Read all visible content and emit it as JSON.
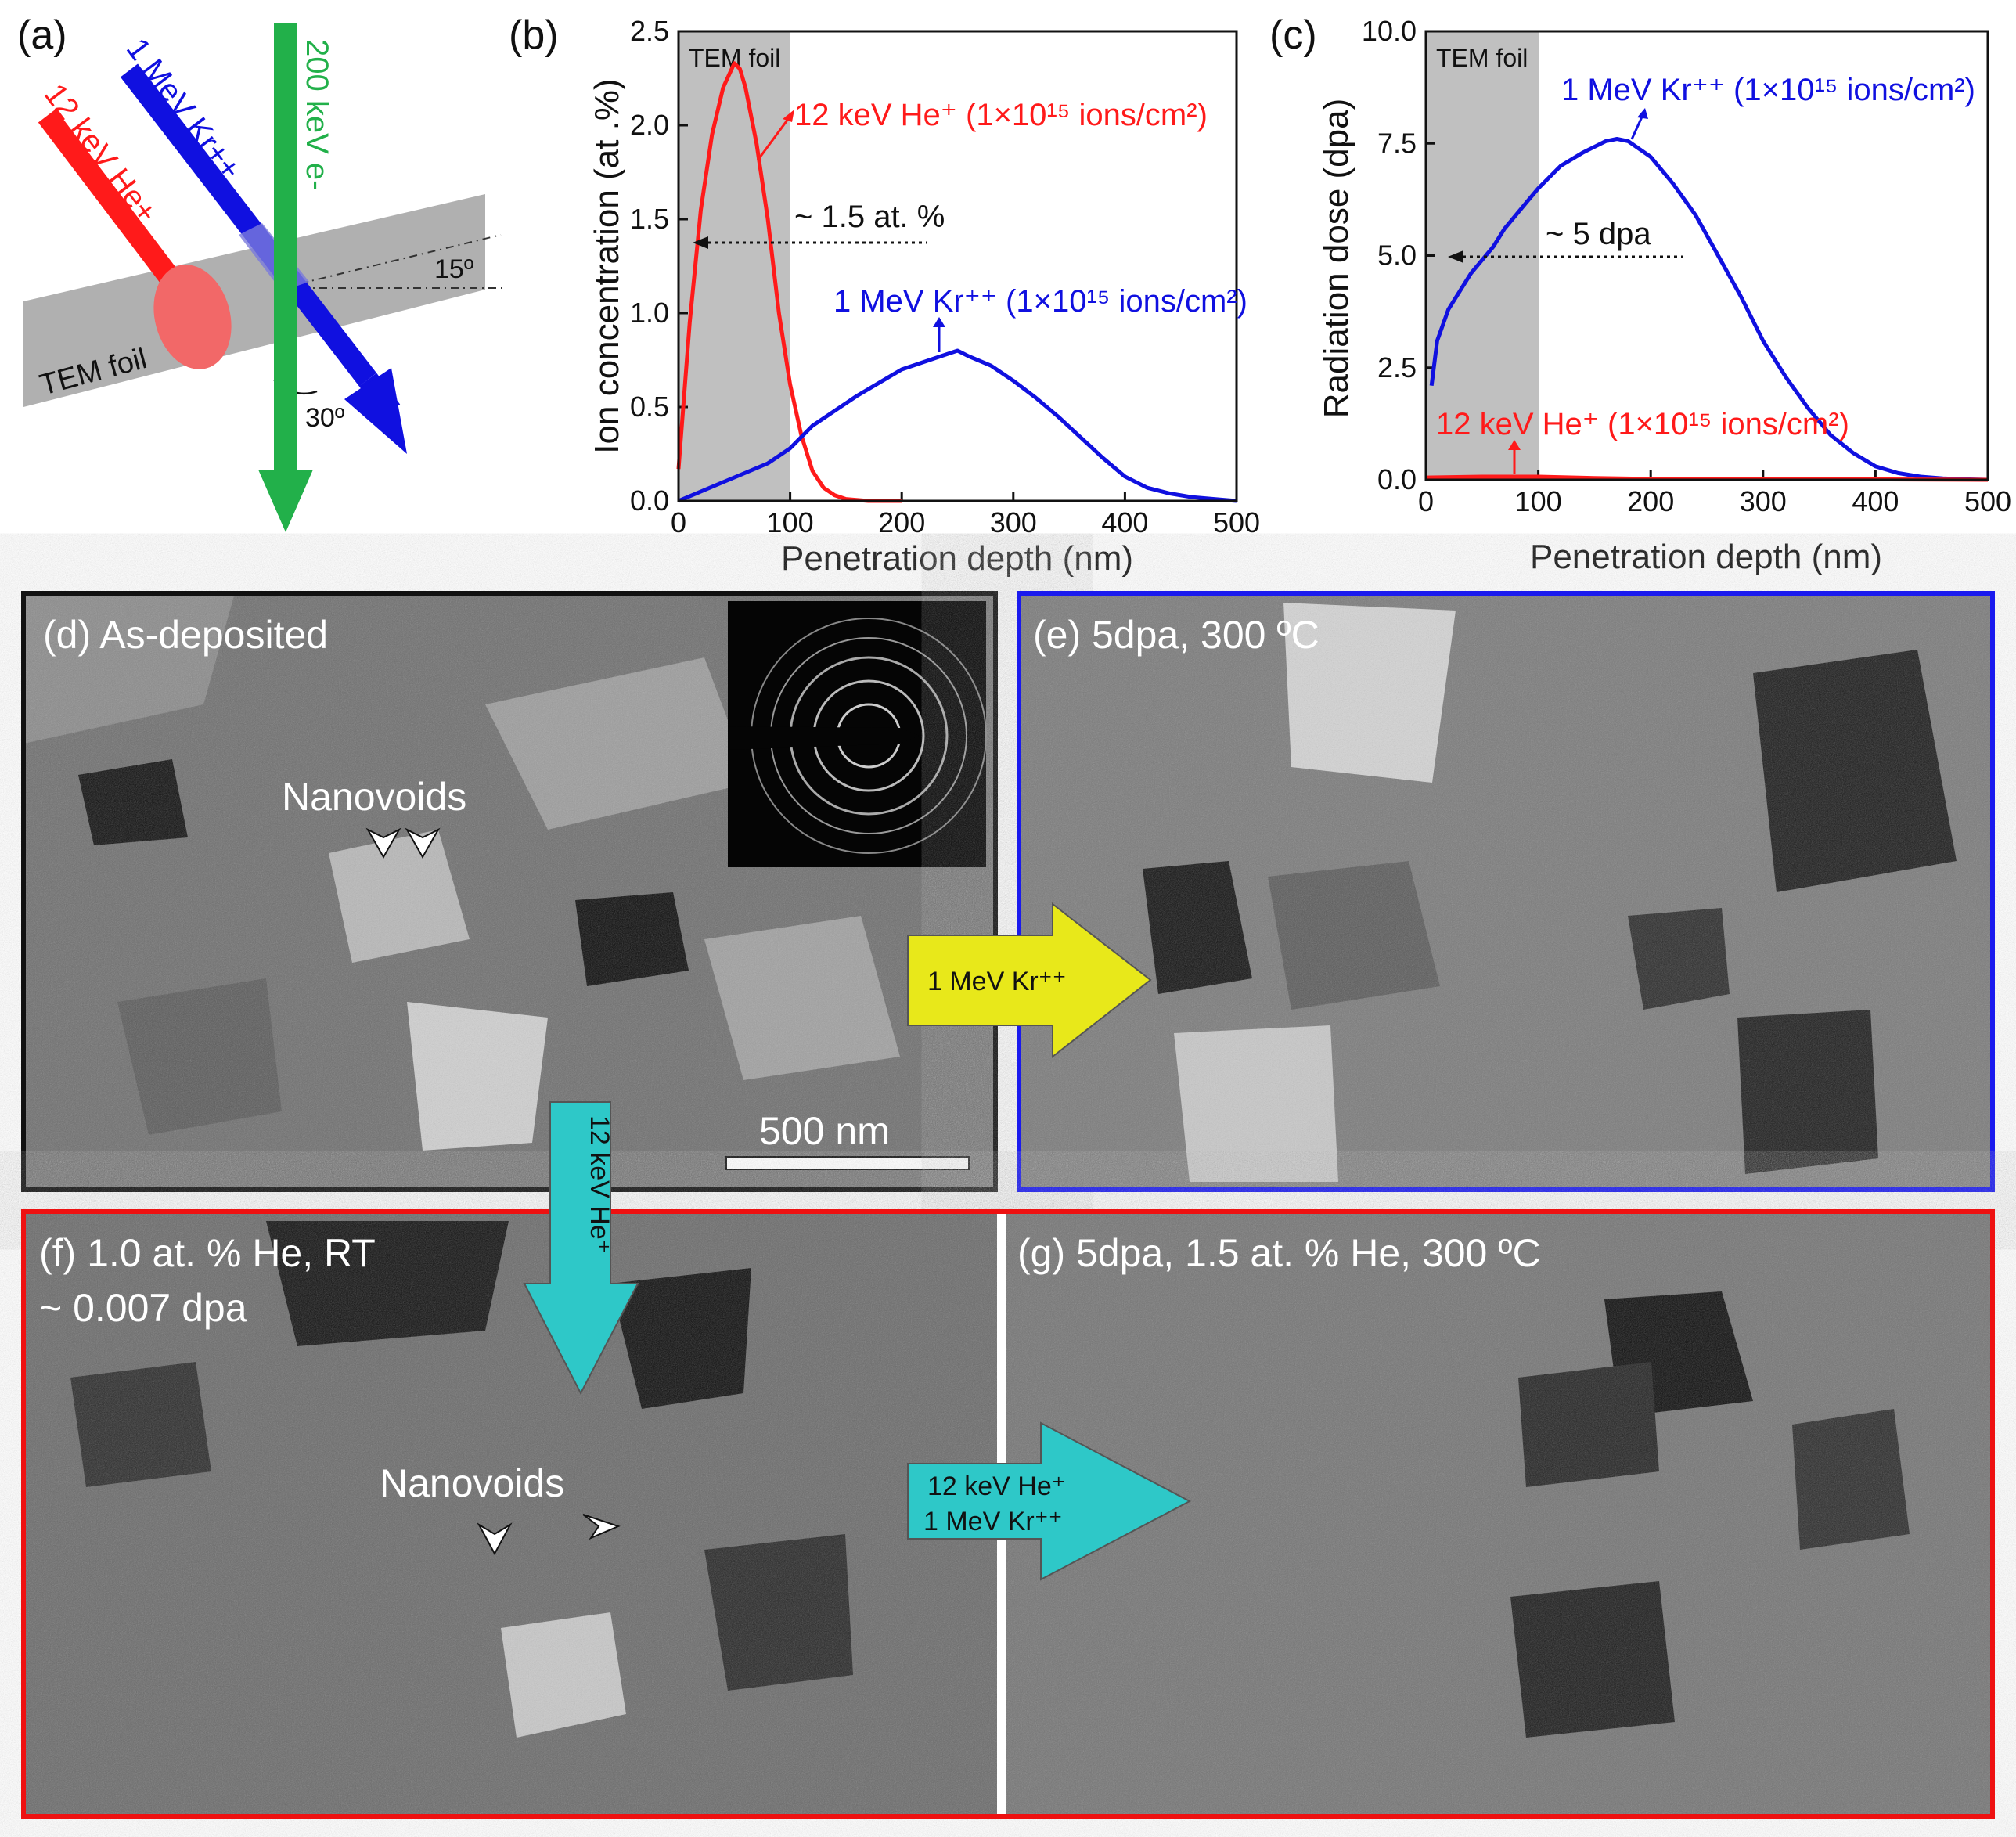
{
  "panel_a": {
    "letter": "(a)",
    "beam_he": "12 keV He+",
    "beam_kr": "1 MeV Kr++",
    "beam_e": "200 keV e-",
    "foil_label": "TEM foil",
    "angle_tilt": "15º",
    "angle_kr": "30º",
    "colors": {
      "he": "#ff1a1a",
      "kr": "#1010e0",
      "e": "#22b04a",
      "foil": "#aaaaaa"
    }
  },
  "panel_b": {
    "letter": "(b)",
    "foil_label": "TEM foil",
    "he_label": "12 keV He⁺ (1×10¹⁵ ions/cm²)",
    "kr_label": "1 MeV Kr⁺⁺ (1×10¹⁵ ions/cm²)",
    "marker_label": "~ 1.5 at. %"
  },
  "panel_c": {
    "letter": "(c)",
    "foil_label": "TEM foil",
    "kr_label": "1 MeV Kr⁺⁺ (1×10¹⁵ ions/cm²)",
    "he_label": "12 keV He⁺ (1×10¹⁵ ions/cm²)",
    "marker_label": "~ 5 dpa"
  },
  "chart_data": [
    {
      "type": "line",
      "xlabel": "Penetration depth (nm)",
      "ylabel": "Ion concentration (at .%)",
      "xlim": [
        0,
        500
      ],
      "ylim": [
        0,
        2.5
      ],
      "xticks": [
        "0",
        "100",
        "200",
        "300",
        "400",
        "500"
      ],
      "yticks": [
        "0.0",
        "0.5",
        "1.0",
        "1.5",
        "2.0",
        "2.5"
      ],
      "shaded_region": [
        0,
        100
      ],
      "series": [
        {
          "name": "12 keV He⁺ (1×10¹⁵ ions/cm²)",
          "color": "#ff1a1a",
          "x": [
            0,
            10,
            20,
            30,
            40,
            50,
            55,
            60,
            70,
            80,
            90,
            100,
            110,
            120,
            130,
            140,
            150,
            170,
            200
          ],
          "y": [
            0.17,
            0.95,
            1.55,
            1.95,
            2.2,
            2.33,
            2.3,
            2.2,
            1.9,
            1.5,
            1.0,
            0.62,
            0.35,
            0.16,
            0.07,
            0.03,
            0.01,
            0.0,
            0.0
          ]
        },
        {
          "name": "1 MeV Kr⁺⁺ (1×10¹⁵ ions/cm²)",
          "color": "#1010e0",
          "x": [
            0,
            20,
            40,
            60,
            80,
            100,
            120,
            140,
            160,
            180,
            200,
            220,
            240,
            250,
            260,
            280,
            300,
            320,
            340,
            360,
            380,
            400,
            420,
            440,
            460,
            480,
            500
          ],
          "y": [
            0.0,
            0.05,
            0.1,
            0.15,
            0.2,
            0.28,
            0.4,
            0.48,
            0.56,
            0.63,
            0.7,
            0.74,
            0.78,
            0.8,
            0.77,
            0.72,
            0.64,
            0.55,
            0.45,
            0.34,
            0.23,
            0.13,
            0.07,
            0.04,
            0.02,
            0.01,
            0.0
          ]
        }
      ]
    },
    {
      "type": "line",
      "xlabel": "Penetration depth (nm)",
      "ylabel": "Radiation dose (dpa)",
      "xlim": [
        0,
        500
      ],
      "ylim": [
        0,
        10
      ],
      "xticks": [
        "0",
        "100",
        "200",
        "300",
        "400",
        "500"
      ],
      "yticks": [
        "0.0",
        "2.5",
        "5.0",
        "7.5",
        "10.0"
      ],
      "shaded_region": [
        0,
        100
      ],
      "series": [
        {
          "name": "1 MeV Kr⁺⁺ (1×10¹⁵ ions/cm²)",
          "color": "#1010e0",
          "x": [
            5,
            10,
            20,
            30,
            40,
            50,
            60,
            70,
            80,
            90,
            100,
            120,
            140,
            160,
            170,
            180,
            200,
            220,
            240,
            260,
            280,
            300,
            320,
            340,
            360,
            380,
            400,
            420,
            440,
            460,
            480,
            500
          ],
          "y": [
            2.1,
            3.1,
            3.8,
            4.2,
            4.6,
            4.9,
            5.2,
            5.6,
            5.9,
            6.2,
            6.5,
            7.0,
            7.3,
            7.55,
            7.6,
            7.55,
            7.2,
            6.6,
            5.9,
            5.0,
            4.1,
            3.1,
            2.3,
            1.6,
            1.0,
            0.6,
            0.3,
            0.15,
            0.07,
            0.03,
            0.01,
            0.0
          ]
        },
        {
          "name": "12 keV He⁺ (1×10¹⁵ ions/cm²)",
          "color": "#ff1a1a",
          "x": [
            0,
            50,
            100,
            150,
            200,
            300,
            400,
            500
          ],
          "y": [
            0.05,
            0.07,
            0.07,
            0.04,
            0.02,
            0.01,
            0.01,
            0.0
          ]
        }
      ]
    }
  ],
  "micrographs": {
    "d": {
      "label": "(d) As-deposited",
      "nanovoids": "Nanovoids",
      "scale": "500 nm",
      "frame": "#111111"
    },
    "e": {
      "label": "(e) 5dpa, 300 ºC",
      "frame": "#1a1aee"
    },
    "f": {
      "label1": "(f) 1.0 at. % He, RT",
      "label2": "~ 0.007 dpa",
      "nanovoids": "Nanovoids",
      "frame": "#ee1111"
    },
    "g": {
      "label": "(g) 5dpa, 1.5 at. % He, 300 ºC"
    }
  },
  "flow_arrows": {
    "kr": "1 MeV Kr⁺⁺",
    "he": "12 keV He⁺",
    "combo1": "12 keV He⁺",
    "combo2": "1 MeV Kr⁺⁺",
    "colors": {
      "kr": "#e8e81a",
      "he": "#2ec8c8"
    }
  }
}
